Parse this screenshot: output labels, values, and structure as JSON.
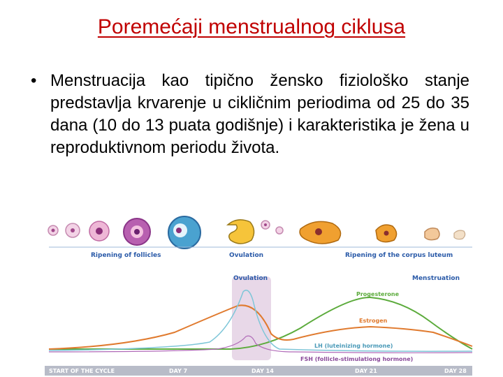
{
  "slide": {
    "title": "Poremećaji menstrualnog ciklusa",
    "bullet": "Menstruacija kao tipično žensko fiziološko stanje predstavlja krvarenje u cikličnim periodima od 25 do 35 dana (10 do 13 puata godišnje) i karakteristika je žena u reproduktivnom periodu života."
  },
  "figure": {
    "phase_labels": {
      "follicles": "Ripening of follicles",
      "ovulation": "Ovulation",
      "corpus_luteum": "Ripening of the corpus luteum"
    },
    "curve_labels": {
      "ovulation": "Ovulation",
      "menstruation": "Menstruation",
      "progesterone": "Progesterone",
      "estrogen": "Estrogen",
      "lh": "LH (luteinizing hormone)",
      "fsh": "FSH (follicle-stimulationg hormone)"
    },
    "axis_labels": {
      "start": "START OF THE CYCLE",
      "day7": "DAY 7",
      "day14": "DAY 14",
      "day21": "DAY 21",
      "day28": "DAY 28"
    },
    "colors": {
      "title": "#c00000",
      "progesterone": "#5cab3c",
      "estrogen": "#e07a2e",
      "lh": "#7ec6d8",
      "fsh": "#b06ab8",
      "labels": "#2a5aa8",
      "ovulation_band": "#e8d8e8",
      "axis_bar": "#b8bcc8"
    }
  }
}
